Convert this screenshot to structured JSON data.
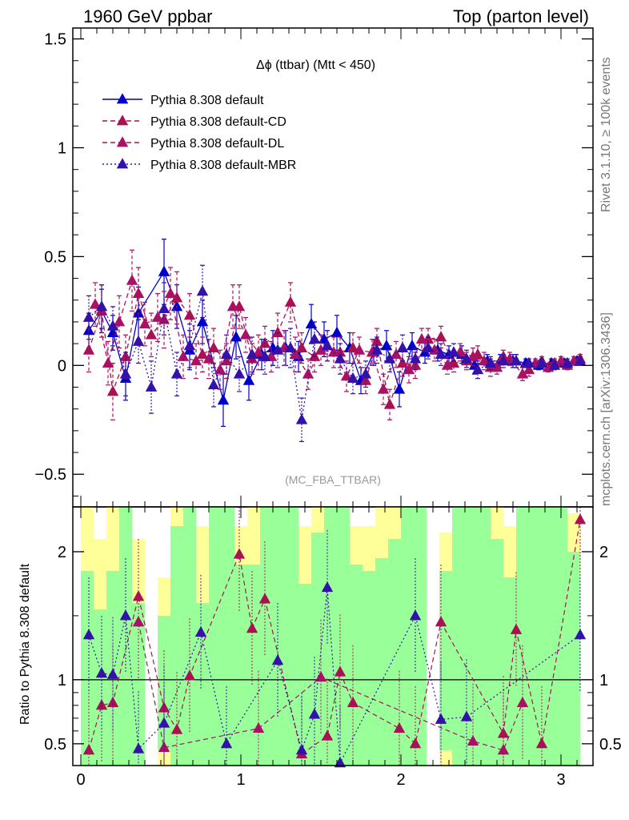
{
  "header": {
    "left": "1960 GeV ppbar",
    "right": "Top (parton level)"
  },
  "side_labels": {
    "rivet": "Rivet 3.1.10, ≥ 100k events",
    "mcplots": "mcplots.cern.ch [arXiv:1306.3436]"
  },
  "watermark": "(MC_FBA_TTBAR)",
  "plot_title": "Δϕ (ttbar) (Mtt < 450)",
  "colors": {
    "default": "#0000cc",
    "cd": "#aa1155",
    "dl": "#aa1166",
    "mbr": "#3311aa",
    "band_inner": "#99ff99",
    "band_outer": "#ffff99"
  },
  "chart_data": [
    {
      "type": "line",
      "title": "Δϕ (ttbar) (Mtt < 450)",
      "xlim": [
        -0.05,
        3.2
      ],
      "ylim": [
        -0.65,
        1.55
      ],
      "yticks": [
        "−0.5",
        "0",
        "0.5",
        "1",
        "1.5"
      ],
      "ytick_values": [
        -0.5,
        0,
        0.5,
        1,
        1.5
      ],
      "xticks": [
        "0",
        "1",
        "2",
        "3"
      ],
      "legend_position": "top-left",
      "series": [
        {
          "name": "Pythia 8.308 default",
          "style": "solid",
          "x": [
            0.05,
            0.13,
            0.2,
            0.28,
            0.36,
            0.52,
            0.6,
            0.68,
            0.76,
            0.89,
            0.97,
            1.05,
            1.13,
            1.2,
            1.28,
            1.36,
            1.44,
            1.52,
            1.6,
            1.68,
            1.75,
            1.83,
            1.91,
            1.99,
            2.07,
            2.15,
            2.23,
            2.3,
            2.38,
            2.46,
            2.54,
            2.62,
            2.7,
            2.78,
            2.86,
            2.94,
            3.02,
            3.1
          ],
          "y": [
            0.16,
            0.25,
            0.15,
            -0.06,
            0.24,
            0.43,
            0.27,
            0.07,
            0.2,
            -0.16,
            0.13,
            -0.07,
            0.05,
            0.08,
            0.08,
            0.04,
            0.19,
            0.12,
            0.15,
            0.08,
            -0.07,
            0.06,
            0.09,
            -0.11,
            0.09,
            0.06,
            0.07,
            0.05,
            0.05,
            0.0,
            0.02,
            0.02,
            0.02,
            0.01,
            0.0,
            0.01,
            0.01,
            0.02
          ],
          "err": [
            0.08,
            0.1,
            0.08,
            0.1,
            0.12,
            0.15,
            0.1,
            0.09,
            0.1,
            0.12,
            0.1,
            0.09,
            0.07,
            0.08,
            0.08,
            0.07,
            0.09,
            0.08,
            0.08,
            0.07,
            0.06,
            0.06,
            0.07,
            0.08,
            0.06,
            0.05,
            0.05,
            0.04,
            0.04,
            0.04,
            0.03,
            0.03,
            0.03,
            0.02,
            0.02,
            0.02,
            0.02,
            0.02
          ]
        },
        {
          "name": "Pythia 8.308 default-CD",
          "style": "dashed",
          "x": [
            0.05,
            0.13,
            0.2,
            0.28,
            0.36,
            0.44,
            0.52,
            0.6,
            0.68,
            0.76,
            0.83,
            0.91,
            0.99,
            1.07,
            1.15,
            1.23,
            1.31,
            1.38,
            1.46,
            1.54,
            1.62,
            1.7,
            1.78,
            1.85,
            1.93,
            2.01,
            2.09,
            2.17,
            2.25,
            2.33,
            2.41,
            2.48,
            2.56,
            2.64,
            2.72,
            2.8,
            2.88,
            2.96,
            3.04,
            3.12
          ],
          "y": [
            0.07,
            0.25,
            -0.12,
            0.04,
            0.33,
            0.14,
            0.21,
            0.31,
            0.23,
            0.05,
            0.08,
            0.02,
            0.27,
            0.03,
            0.1,
            0.15,
            0.29,
            0.08,
            0.04,
            0.09,
            0.06,
            0.08,
            -0.07,
            0.11,
            -0.18,
            0.01,
            0.0,
            0.12,
            0.13,
            0.01,
            0.02,
            0.05,
            -0.01,
            0.04,
            0.02,
            -0.02,
            0.02,
            0.01,
            0.0,
            0.03
          ],
          "err": [
            0.1,
            0.12,
            0.13,
            0.1,
            0.12,
            0.1,
            0.13,
            0.12,
            0.1,
            0.08,
            0.09,
            0.08,
            0.1,
            0.07,
            0.08,
            0.09,
            0.09,
            0.07,
            0.07,
            0.07,
            0.07,
            0.07,
            0.06,
            0.06,
            0.07,
            0.06,
            0.06,
            0.05,
            0.05,
            0.04,
            0.04,
            0.04,
            0.04,
            0.03,
            0.03,
            0.03,
            0.02,
            0.02,
            0.02,
            0.02
          ]
        },
        {
          "name": "Pythia 8.308 default-DL",
          "style": "dashed",
          "x": [
            0.09,
            0.17,
            0.24,
            0.32,
            0.4,
            0.48,
            0.56,
            0.64,
            0.72,
            0.8,
            0.87,
            0.95,
            1.03,
            1.11,
            1.19,
            1.27,
            1.34,
            1.42,
            1.5,
            1.58,
            1.66,
            1.74,
            1.82,
            1.89,
            1.97,
            2.05,
            2.13,
            2.21,
            2.29,
            2.37,
            2.45,
            2.52,
            2.6,
            2.68,
            2.76,
            2.84,
            2.92,
            3.0,
            3.08
          ],
          "y": [
            0.28,
            0.01,
            0.2,
            0.39,
            0.19,
            0.22,
            0.33,
            0.04,
            0.02,
            0.03,
            -0.02,
            0.27,
            0.14,
            0.06,
            0.04,
            0.08,
            0.05,
            -0.04,
            0.07,
            0.06,
            -0.05,
            0.07,
            0.06,
            -0.11,
            0.05,
            -0.02,
            0.12,
            0.07,
            0.0,
            0.06,
            0.04,
            0.02,
            -0.01,
            0.03,
            -0.04,
            0.01,
            -0.01,
            0.02,
            0.02
          ],
          "err": [
            0.1,
            0.1,
            0.12,
            0.14,
            0.1,
            0.11,
            0.12,
            0.1,
            0.08,
            0.09,
            0.09,
            0.1,
            0.08,
            0.08,
            0.07,
            0.08,
            0.08,
            0.07,
            0.07,
            0.07,
            0.07,
            0.06,
            0.06,
            0.07,
            0.06,
            0.06,
            0.05,
            0.05,
            0.04,
            0.04,
            0.04,
            0.04,
            0.03,
            0.03,
            0.03,
            0.02,
            0.02,
            0.02,
            0.02
          ]
        },
        {
          "name": "Pythia 8.308 default-MBR",
          "style": "dotted",
          "x": [
            0.05,
            0.13,
            0.2,
            0.28,
            0.36,
            0.44,
            0.52,
            0.6,
            0.68,
            0.76,
            0.83,
            0.91,
            0.99,
            1.07,
            1.15,
            1.23,
            1.31,
            1.38,
            1.46,
            1.54,
            1.62,
            1.7,
            1.78,
            1.85,
            1.93,
            2.01,
            2.09,
            2.17,
            2.25,
            2.33,
            2.41,
            2.48,
            2.56,
            2.64,
            2.72,
            2.8,
            2.88,
            2.96,
            3.04,
            3.12
          ],
          "y": [
            0.22,
            0.27,
            0.18,
            -0.04,
            0.11,
            -0.1,
            0.26,
            -0.04,
            0.09,
            0.34,
            -0.09,
            0.05,
            -0.04,
            0.05,
            0.04,
            0.07,
            0.08,
            -0.25,
            0.12,
            0.09,
            0.03,
            -0.06,
            -0.04,
            0.07,
            0.03,
            0.08,
            0.03,
            0.08,
            0.05,
            0.06,
            0.03,
            -0.02,
            0.01,
            0.02,
            0.02,
            0.01,
            0.01,
            0.0,
            0.01,
            0.02
          ],
          "err": [
            0.1,
            0.1,
            0.09,
            0.1,
            0.1,
            0.12,
            0.12,
            0.1,
            0.1,
            0.12,
            0.1,
            0.09,
            0.08,
            0.08,
            0.08,
            0.08,
            0.09,
            0.1,
            0.08,
            0.07,
            0.07,
            0.07,
            0.06,
            0.06,
            0.06,
            0.06,
            0.05,
            0.05,
            0.05,
            0.04,
            0.04,
            0.04,
            0.03,
            0.03,
            0.03,
            0.02,
            0.02,
            0.02,
            0.02,
            0.02
          ]
        }
      ]
    },
    {
      "type": "line",
      "ylabel": "Ratio to Pythia 8.308 default",
      "xlim": [
        -0.05,
        3.2
      ],
      "ylim": [
        0.33,
        2.35
      ],
      "yticks": [
        "0.5",
        "1",
        "2"
      ],
      "ytick_values": [
        0.5,
        1,
        2
      ],
      "xticks": [
        "0",
        "1",
        "2",
        "3"
      ],
      "xtick_values": [
        0,
        1,
        2,
        3
      ],
      "reference_line": 1,
      "band": {
        "edges": [
          0.0,
          0.08,
          0.16,
          0.24,
          0.32,
          0.4,
          0.48,
          0.56,
          0.64,
          0.72,
          0.8,
          0.88,
          0.96,
          1.04,
          1.12,
          1.2,
          1.28,
          1.36,
          1.44,
          1.52,
          1.6,
          1.68,
          1.76,
          1.84,
          1.92,
          2.0,
          2.08,
          2.16,
          2.24,
          2.32,
          2.4,
          2.48,
          2.56,
          2.64,
          2.72,
          2.8,
          2.88,
          2.96,
          3.04,
          3.12
        ],
        "inner_lo": [
          0.33,
          0.33,
          0.33,
          0.33,
          0.33,
          0.33,
          0.45,
          0.33,
          0.33,
          0.33,
          0.33,
          0.33,
          0.33,
          0.33,
          0.33,
          0.33,
          0.33,
          0.33,
          0.33,
          0.33,
          0.33,
          0.33,
          0.33,
          0.33,
          0.33,
          0.33,
          0.33,
          0.33,
          0.45,
          0.33,
          0.33,
          0.33,
          0.33,
          0.33,
          0.33,
          0.33,
          0.33,
          0.33,
          0.33
        ],
        "inner_hi": [
          1.85,
          1.55,
          1.85,
          2.35,
          1.6,
          0.33,
          1.5,
          2.2,
          2.35,
          1.6,
          2.35,
          2.35,
          1.9,
          1.9,
          2.35,
          2.35,
          2.35,
          1.75,
          2.15,
          2.35,
          2.35,
          1.9,
          1.85,
          1.95,
          2.1,
          2.35,
          2.35,
          0.33,
          1.85,
          2.35,
          2.35,
          2.35,
          2.1,
          1.8,
          2.35,
          2.35,
          2.35,
          2.35,
          2.0
        ],
        "outer_lo": [
          0.33,
          0.33,
          0.33,
          0.33,
          0.33,
          0.33,
          0.33,
          0.33,
          0.33,
          0.33,
          0.33,
          0.33,
          0.33,
          0.33,
          0.33,
          0.33,
          0.33,
          0.33,
          0.33,
          0.33,
          0.33,
          0.33,
          0.33,
          0.33,
          0.33,
          0.33,
          0.33,
          0.33,
          0.33,
          0.33,
          0.33,
          0.33,
          0.33,
          0.33,
          0.33,
          0.33,
          0.33,
          0.33,
          0.33
        ],
        "outer_hi": [
          2.35,
          2.1,
          2.35,
          2.35,
          2.1,
          0.33,
          1.8,
          2.35,
          2.35,
          2.2,
          2.35,
          2.35,
          2.2,
          2.35,
          2.35,
          2.35,
          2.35,
          2.2,
          2.35,
          2.35,
          2.35,
          2.2,
          2.2,
          2.35,
          2.35,
          2.35,
          2.35,
          0.33,
          2.15,
          2.35,
          2.35,
          2.35,
          2.35,
          2.2,
          2.35,
          2.35,
          2.35,
          2.35,
          2.3
        ]
      },
      "series": [
        {
          "name": "Pythia 8.308 default-CD",
          "style": "dashed",
          "x": [
            0.05,
            0.13,
            0.2,
            0.36,
            0.52,
            0.6,
            0.68,
            0.99,
            1.07,
            1.15,
            1.38,
            1.54,
            1.62,
            1.7,
            1.99,
            2.09,
            2.25,
            2.64,
            2.72,
            2.88,
            3.12
          ],
          "y": [
            0.45,
            0.8,
            0.82,
            1.65,
            0.78,
            0.61,
            1.03,
            1.98,
            1.4,
            1.63,
            0.42,
            0.56,
            1.06,
            0.82,
            0.62,
            0.5,
            1.45,
            0.58,
            1.39,
            0.5,
            2.25
          ]
        },
        {
          "name": "Pythia 8.308 default-DL",
          "style": "dashed",
          "x": [
            0.36,
            0.52,
            1.11,
            1.5,
            2.45,
            2.64,
            2.76
          ],
          "y": [
            1.45,
            0.47,
            0.62,
            1.02,
            0.52,
            0.45,
            0.82
          ]
        },
        {
          "name": "Pythia 8.308 default-MBR",
          "style": "dotted",
          "x": [
            0.05,
            0.13,
            0.2,
            0.28,
            0.36,
            0.52,
            0.75,
            0.91,
            1.23,
            1.38,
            1.46,
            1.54,
            1.62,
            2.09,
            2.25,
            2.41,
            3.12
          ],
          "y": [
            1.35,
            1.05,
            1.04,
            1.5,
            0.46,
            0.66,
            1.37,
            0.5,
            1.15,
            0.45,
            0.73,
            1.72,
            0.35,
            1.5,
            0.69,
            0.71,
            1.35
          ]
        }
      ]
    }
  ]
}
